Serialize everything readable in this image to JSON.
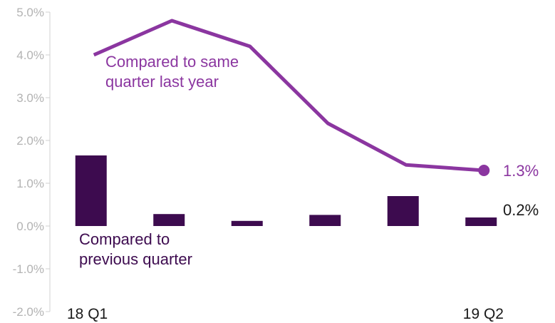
{
  "chart_data": {
    "type": "bar",
    "categories": [
      "18 Q1",
      "18 Q2",
      "18 Q3",
      "18 Q4",
      "19 Q1",
      "19 Q2"
    ],
    "x_tick_labels": [
      "18 Q1",
      "",
      "",
      "",
      "",
      "19 Q2"
    ],
    "ylim": [
      -2.0,
      5.0
    ],
    "yticks": [
      "5.0%",
      "4.0%",
      "3.0%",
      "2.0%",
      "1.0%",
      "0.0%",
      "-1.0%",
      "-2.0%"
    ],
    "grid": false,
    "series": [
      {
        "name": "Compared to previous quarter",
        "type": "bar",
        "values": [
          1.65,
          0.28,
          0.12,
          0.26,
          0.7,
          0.2
        ],
        "color": "#3d0b4f",
        "end_label": "0.2%"
      },
      {
        "name": "Compared to same quarter last year",
        "type": "line",
        "values": [
          4.0,
          4.8,
          4.2,
          2.4,
          1.43,
          1.3
        ],
        "color": "#8b36a0",
        "end_label": "1.3%"
      }
    ],
    "annotations": [
      {
        "series": 1,
        "lines": [
          "Compared to same",
          "quarter last year"
        ],
        "color": "#8b36a0"
      },
      {
        "series": 0,
        "lines": [
          "Compared to",
          "previous quarter"
        ],
        "color": "#3d0b4f"
      }
    ]
  }
}
